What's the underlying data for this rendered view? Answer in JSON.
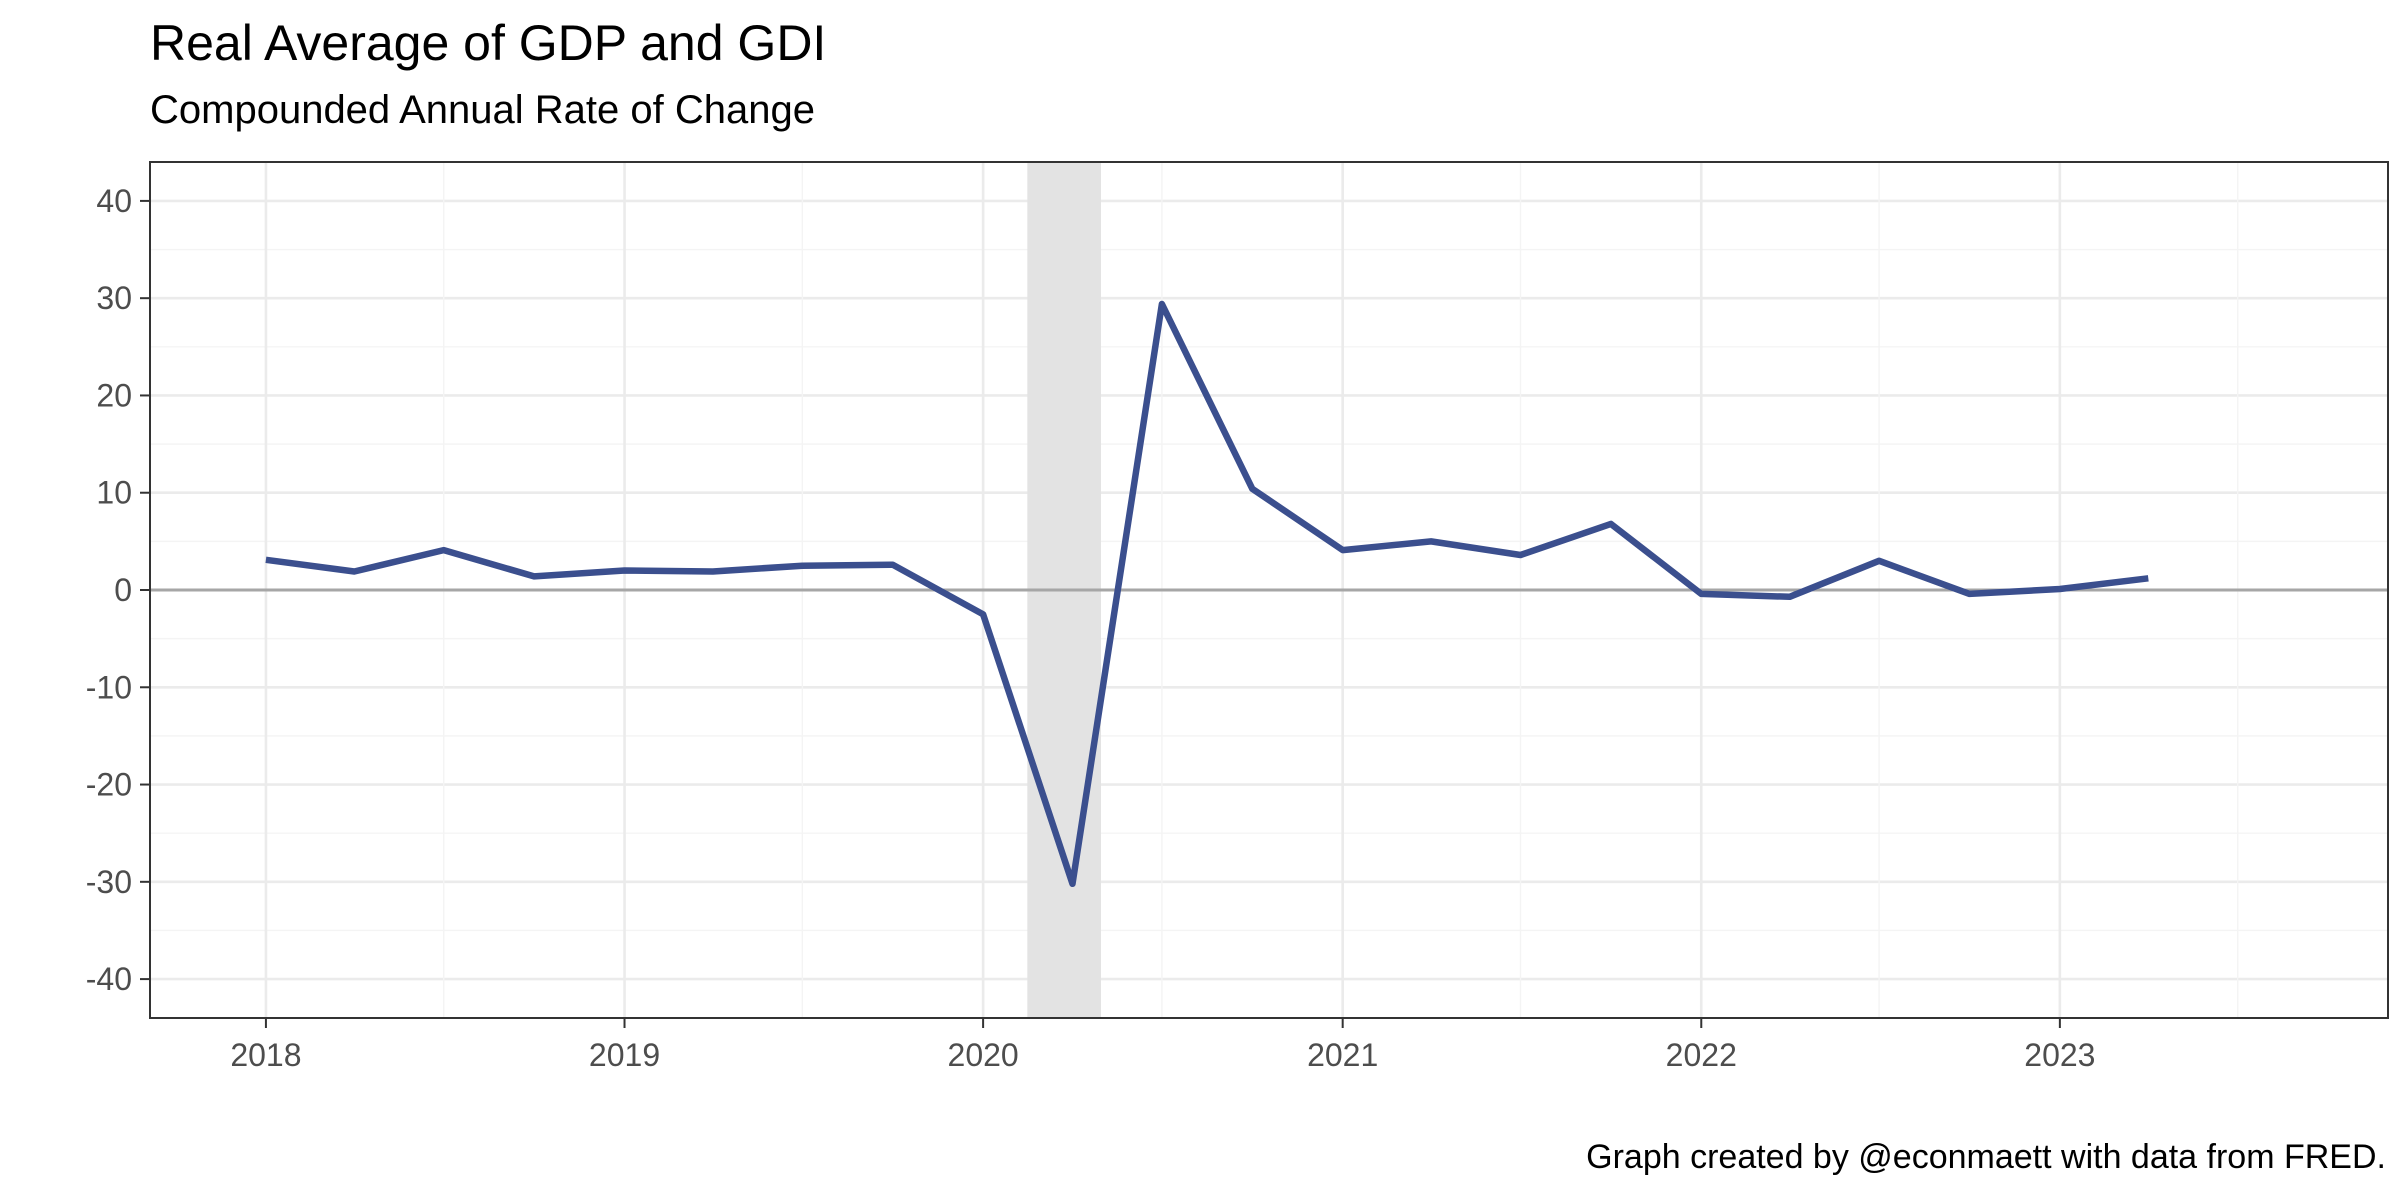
{
  "chart_data": {
    "type": "line",
    "title": "Real Average of GDP and GDI",
    "subtitle": "Compounded Annual Rate of Change",
    "caption": "Graph created by @econmaett with data from FRED.",
    "xlabel": "",
    "ylabel": "",
    "x_ticks": [
      "2018",
      "2019",
      "2020",
      "2021",
      "2022",
      "2023"
    ],
    "y_ticks": [
      "40",
      "30",
      "20",
      "10",
      "0",
      "-10",
      "-20",
      "-30",
      "-40"
    ],
    "ylim": [
      -44,
      44
    ],
    "xlim": [
      "2017-09-05",
      "2023-12-01"
    ],
    "grid": true,
    "zero_line": true,
    "recession_shade": {
      "start": "2020-02-15",
      "end": "2020-04-30"
    },
    "series": [
      {
        "color": "#3b4f8e",
        "x": [
          "2018-01-01",
          "2018-04-01",
          "2018-07-01",
          "2018-10-01",
          "2019-01-01",
          "2019-04-01",
          "2019-07-01",
          "2019-10-01",
          "2020-01-01",
          "2020-04-01",
          "2020-07-01",
          "2020-10-01",
          "2021-01-01",
          "2021-04-01",
          "2021-07-01",
          "2021-10-01",
          "2022-01-01",
          "2022-04-01",
          "2022-07-01",
          "2022-10-01",
          "2023-01-01",
          "2023-04-01"
        ],
        "values": [
          3.1,
          1.9,
          4.1,
          1.4,
          2.0,
          1.9,
          2.5,
          2.6,
          -2.5,
          -30.2,
          29.4,
          10.4,
          4.1,
          5.0,
          3.6,
          6.8,
          -0.4,
          -0.7,
          3.0,
          -0.4,
          0.1,
          1.2
        ]
      }
    ]
  },
  "colors": {
    "line": "#3b4f8e",
    "grid_major": "#ebebeb",
    "grid_minor": "#f4f4f4",
    "shade": "#e3e3e3",
    "zero_line": "#a6a6a6",
    "panel_border": "#333333"
  }
}
